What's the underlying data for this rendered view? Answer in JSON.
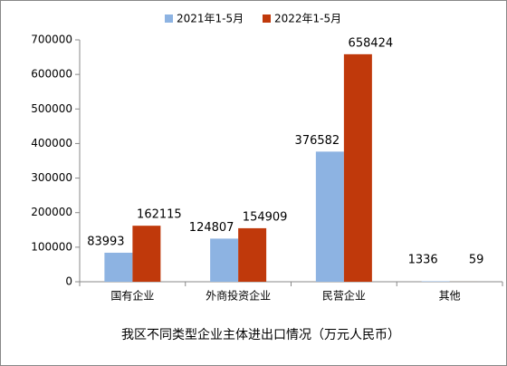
{
  "chart_data": {
    "type": "bar",
    "title": "我区不同类型企业主体进出口情况（万元人民币）",
    "categories": [
      "国有企业",
      "外商投资企业",
      "民营企业",
      "其他"
    ],
    "series": [
      {
        "name": "2021年1-5月",
        "color": "#8db3e2",
        "values": [
          83993,
          124807,
          376582,
          1336
        ]
      },
      {
        "name": "2022年1-5月",
        "color": "#c0390b",
        "values": [
          162115,
          154909,
          658424,
          59
        ]
      }
    ],
    "ylim": [
      0,
      700000
    ],
    "yticks": [
      0,
      100000,
      200000,
      300000,
      400000,
      500000,
      600000,
      700000
    ],
    "legend": "top"
  }
}
